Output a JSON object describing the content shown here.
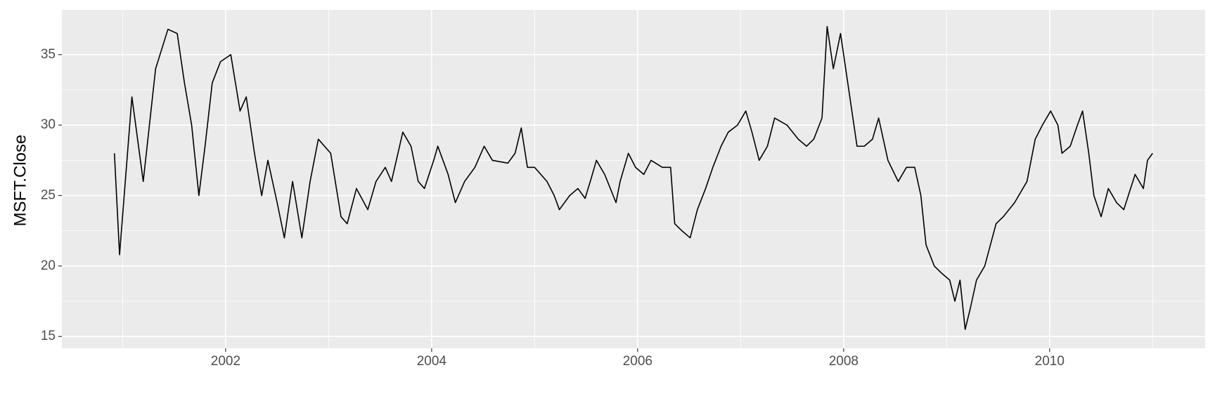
{
  "chart_data": {
    "type": "line",
    "y_label": "MSFT.Close",
    "x": [
      2000.92,
      2000.97,
      2001.09,
      2001.2,
      2001.26,
      2001.32,
      2001.44,
      2001.53,
      2001.6,
      2001.67,
      2001.74,
      2001.8,
      2001.87,
      2001.95,
      2002.05,
      2002.14,
      2002.2,
      2002.28,
      2002.35,
      2002.41,
      2002.5,
      2002.57,
      2002.65,
      2002.74,
      2002.82,
      2002.9,
      2003.02,
      2003.12,
      2003.18,
      2003.27,
      2003.38,
      2003.46,
      2003.55,
      2003.61,
      2003.72,
      2003.8,
      2003.87,
      2003.93,
      2004.02,
      2004.06,
      2004.16,
      2004.23,
      2004.32,
      2004.42,
      2004.51,
      2004.59,
      2004.74,
      2004.81,
      2004.87,
      2004.93,
      2005.0,
      2005.12,
      2005.19,
      2005.24,
      2005.34,
      2005.42,
      2005.49,
      2005.54,
      2005.6,
      2005.68,
      2005.79,
      2005.83,
      2005.91,
      2005.98,
      2006.06,
      2006.13,
      2006.24,
      2006.32,
      2006.36,
      2006.43,
      2006.51,
      2006.58,
      2006.66,
      2006.73,
      2006.81,
      2006.88,
      2006.97,
      2007.05,
      2007.11,
      2007.18,
      2007.26,
      2007.33,
      2007.45,
      2007.56,
      2007.64,
      2007.71,
      2007.79,
      2007.84,
      2007.9,
      2007.97,
      2008.05,
      2008.13,
      2008.2,
      2008.28,
      2008.34,
      2008.43,
      2008.53,
      2008.61,
      2008.69,
      2008.75,
      2008.8,
      2008.88,
      2008.95,
      2009.03,
      2009.08,
      2009.13,
      2009.18,
      2009.23,
      2009.29,
      2009.37,
      2009.48,
      2009.55,
      2009.66,
      2009.78,
      2009.86,
      2009.93,
      2010.01,
      2010.08,
      2010.12,
      2010.2,
      2010.27,
      2010.32,
      2010.38,
      2010.43,
      2010.5,
      2010.57,
      2010.65,
      2010.72,
      2010.83,
      2010.91,
      2010.95,
      2011.0
    ],
    "series": [
      {
        "color": "#000000",
        "values": [
          28,
          20.8,
          32,
          26,
          30,
          34,
          36.8,
          36.5,
          33,
          30,
          25,
          28.5,
          33,
          34.5,
          35,
          31,
          32,
          28,
          25,
          27.5,
          24.5,
          22,
          26,
          22,
          26,
          29,
          28,
          23.5,
          23,
          25.5,
          24,
          26,
          27,
          26,
          29.5,
          28.5,
          26,
          25.5,
          27.5,
          28.5,
          26.5,
          24.5,
          26,
          27,
          28.5,
          27.5,
          27.3,
          28,
          29.8,
          27,
          27,
          26,
          25,
          24,
          25,
          25.5,
          24.8,
          26,
          27.5,
          26.5,
          24.5,
          26,
          28,
          27,
          26.5,
          27.5,
          27,
          27,
          23,
          22.5,
          22,
          24,
          25.5,
          27,
          28.5,
          29.5,
          30,
          31,
          29.5,
          27.5,
          28.5,
          30.5,
          30,
          29,
          28.5,
          29,
          30.5,
          37,
          34,
          36.5,
          32.5,
          28.5,
          28.5,
          29,
          30.5,
          27.5,
          26,
          27,
          27,
          25,
          21.5,
          20,
          19.5,
          19,
          17.5,
          19,
          15.5,
          17,
          19,
          20,
          23,
          23.5,
          24.5,
          26,
          29,
          30,
          31,
          30,
          28,
          28.5,
          30,
          31,
          28,
          25,
          23.5,
          25.5,
          24.5,
          24,
          26.5,
          25.5,
          27.5,
          28
        ]
      }
    ],
    "xlim": [
      2000.41,
      2011.51
    ],
    "ylim": [
      14.16,
      38.18
    ],
    "xticks": [
      2002,
      2004,
      2006,
      2008,
      2010
    ],
    "yticks": [
      15,
      20,
      25,
      30,
      35
    ],
    "grid": true,
    "minor_grid": true
  }
}
